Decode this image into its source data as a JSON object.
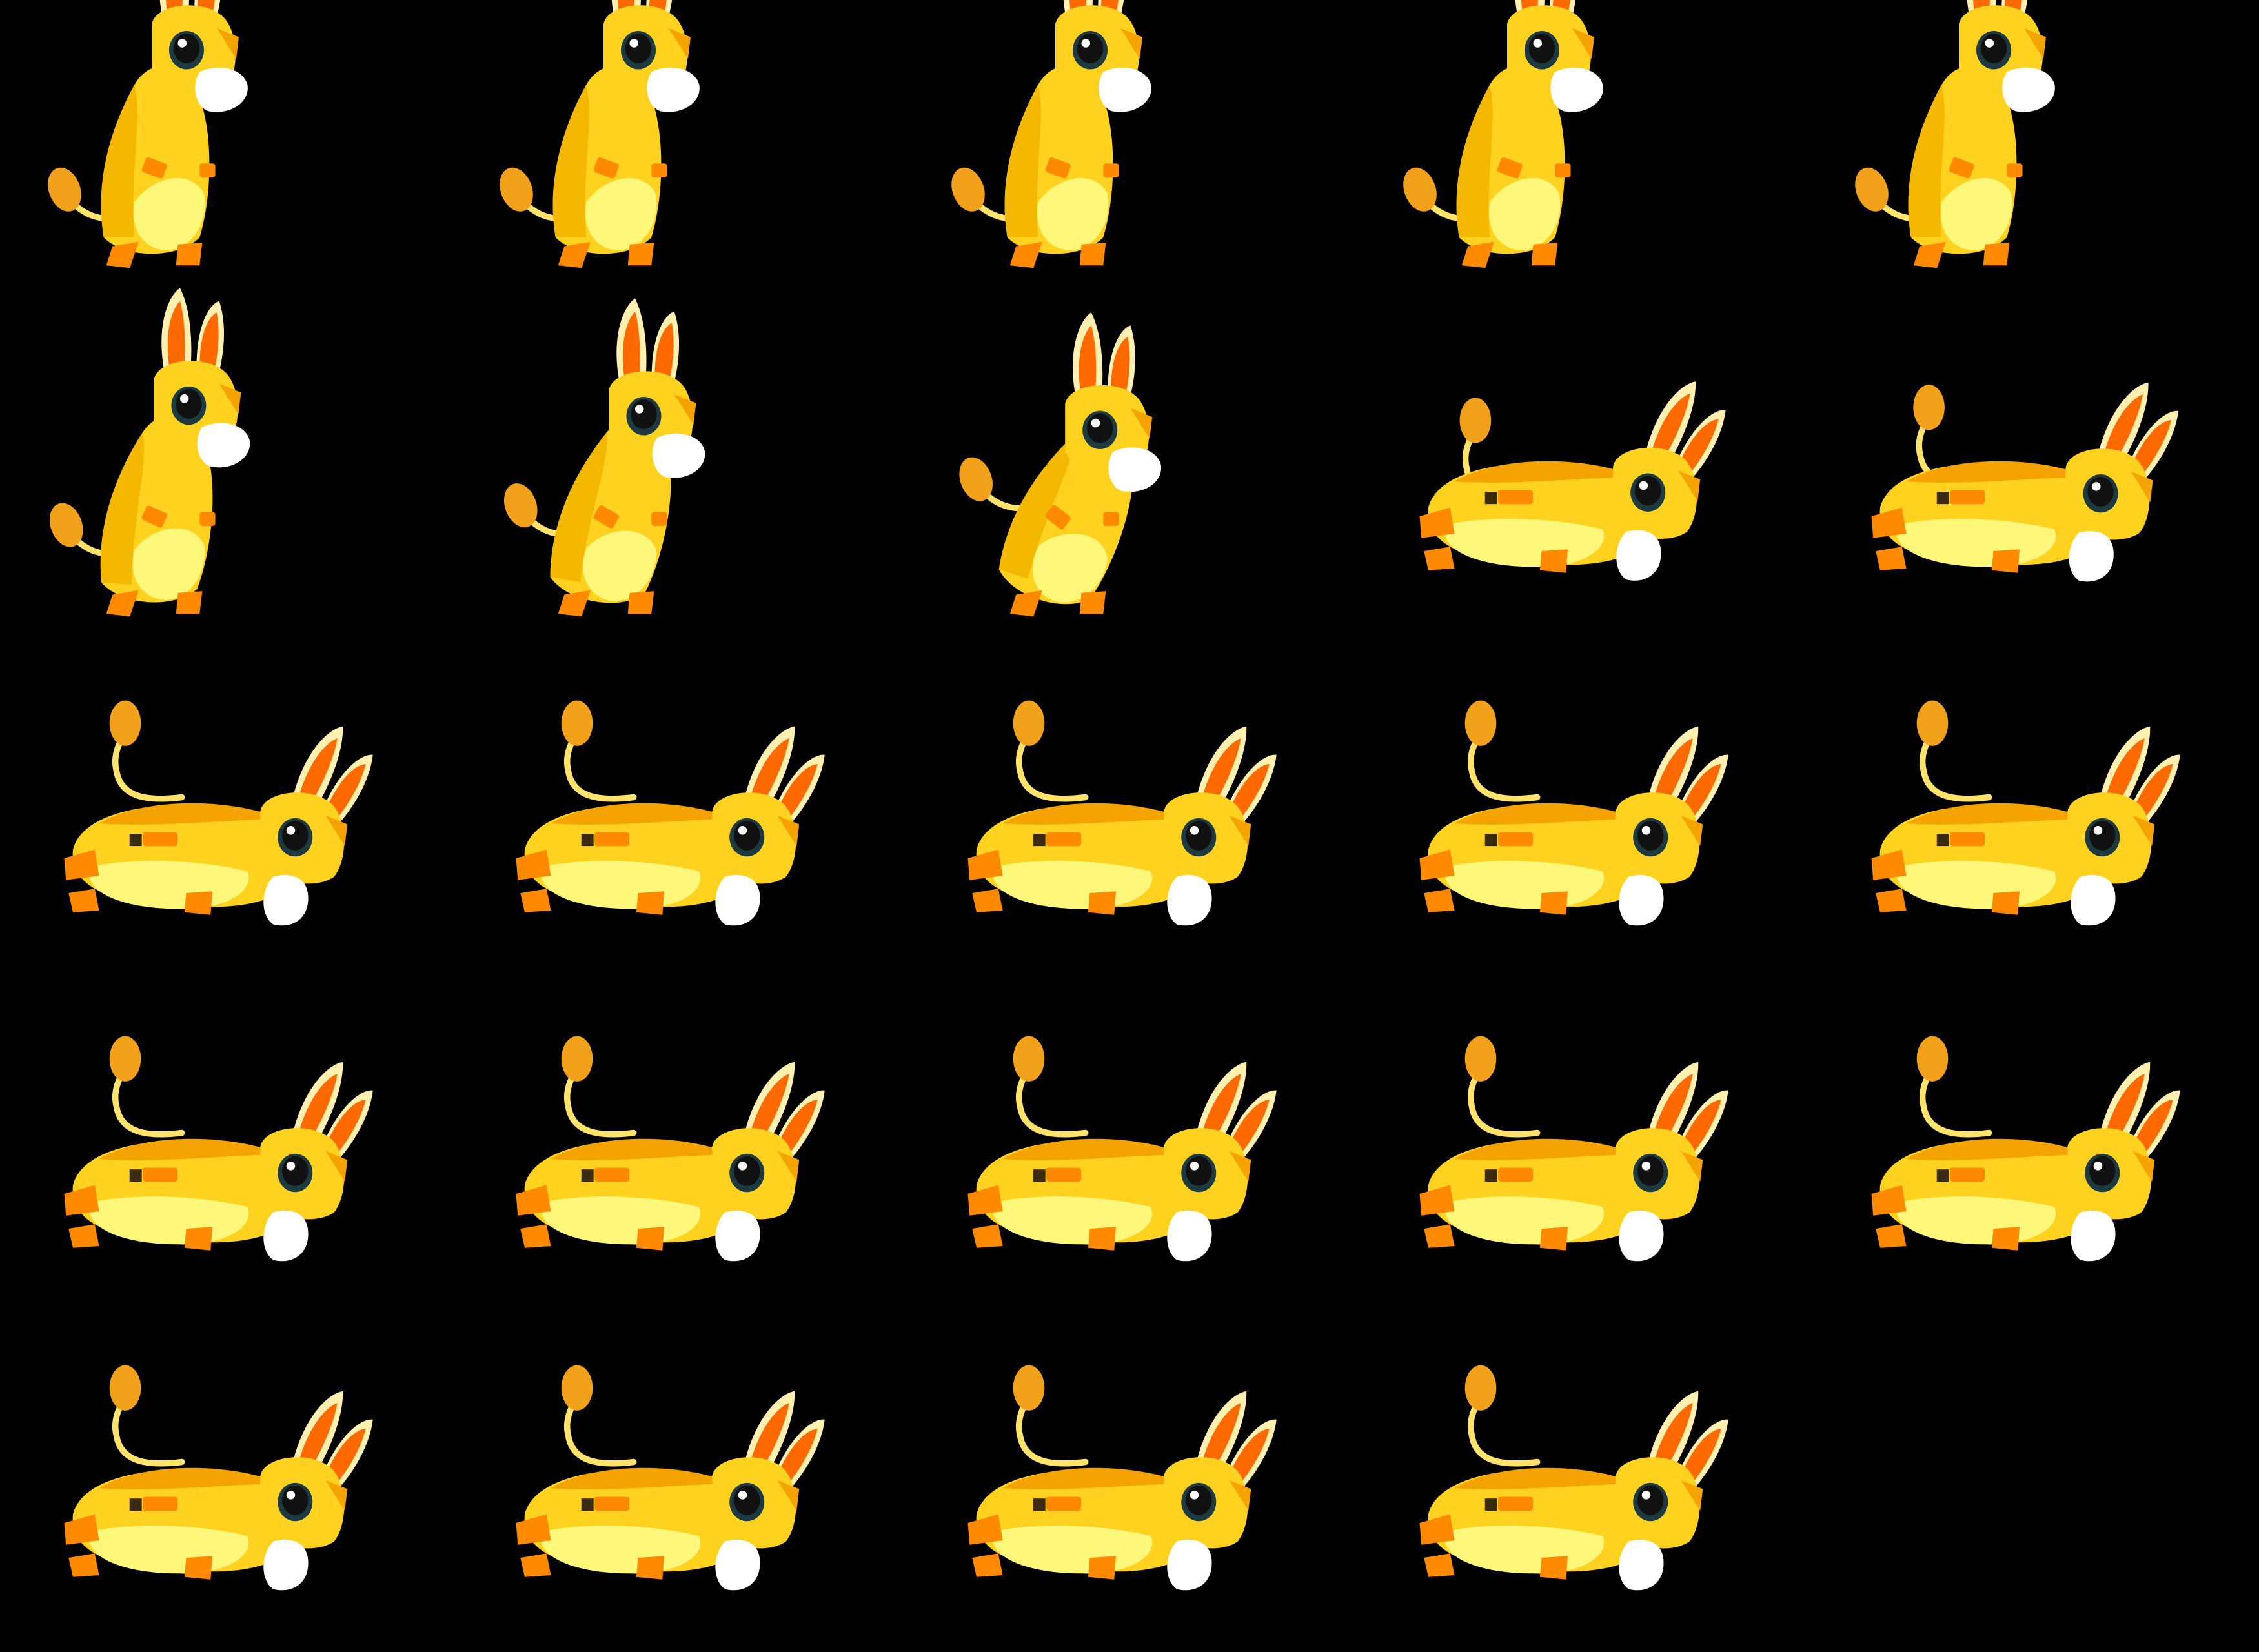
{
  "sprite_sheet": {
    "character": "yellow-donkey",
    "background": "#000000",
    "colors": {
      "body": "#FFD21F",
      "body_shade": "#F5B800",
      "belly": "#FFF77A",
      "ear_outer": "#FFF0B0",
      "ear_inner": "#FF6A00",
      "hoof": "#FF8A00",
      "tail_tuft": "#F2A11A",
      "tail": "#FFE36B",
      "muzzle": "#FFFFFF",
      "eye": "#111111",
      "eye_ring": "#1C3A40",
      "mane": "#F5A300"
    },
    "rows": [
      {
        "name": "row-1",
        "frames": 5,
        "pose": "stand",
        "tilt": [
          0,
          0,
          0,
          0,
          0
        ]
      },
      {
        "name": "row-2",
        "frames": 5,
        "pose": "lean",
        "tilt": [
          0.1,
          0.25,
          0.45,
          0.7,
          0.8
        ]
      },
      {
        "name": "row-3",
        "frames": 5,
        "pose": "run",
        "tilt": [
          1,
          1,
          1,
          1,
          1
        ]
      },
      {
        "name": "row-4",
        "frames": 5,
        "pose": "run",
        "tilt": [
          1,
          1,
          1,
          1,
          1
        ]
      },
      {
        "name": "row-5",
        "frames": 4,
        "pose": "run",
        "tilt": [
          1,
          1,
          1,
          1
        ]
      }
    ]
  }
}
